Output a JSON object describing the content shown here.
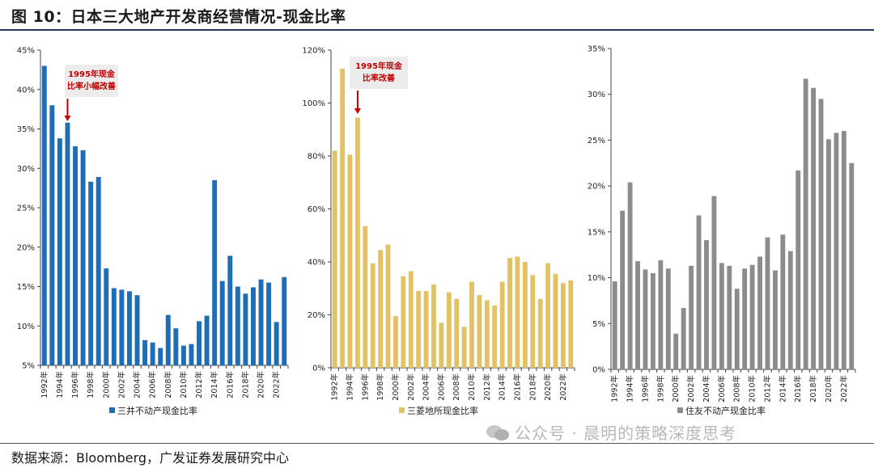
{
  "figure": {
    "title": "图 10：日本三大地产开发商经营情况-现金比率",
    "source": "数据来源：Bloomberg，广发证券发展研究中心",
    "watermark": "公众号 · 晨明的策略深度思考"
  },
  "colors": {
    "blue": "#1f6eb5",
    "yellow": "#e3c165",
    "gray": "#8c8c8c",
    "annotation": "#c00000"
  },
  "chart_data": [
    {
      "type": "bar",
      "legend": "三井不动产现金比率",
      "legend_position": "bottom",
      "grid": false,
      "categories": [
        "1992年",
        "1993年",
        "1994年",
        "1995年",
        "1996年",
        "1997年",
        "1998年",
        "1999年",
        "2000年",
        "2001年",
        "2002年",
        "2003年",
        "2004年",
        "2005年",
        "2006年",
        "2007年",
        "2008年",
        "2009年",
        "2010年",
        "2011年",
        "2012年",
        "2013年",
        "2014年",
        "2015年",
        "2016年",
        "2017年",
        "2018年",
        "2019年",
        "2020年",
        "2021年",
        "2022年",
        "2023年"
      ],
      "x_tick_labels": [
        "1992年",
        "1994年",
        "1996年",
        "1998年",
        "2000年",
        "2002年",
        "2004年",
        "2006年",
        "2008年",
        "2010年",
        "2012年",
        "2014年",
        "2016年",
        "2018年",
        "2020年",
        "2022年"
      ],
      "values": [
        43,
        38,
        33.8,
        35.8,
        32.8,
        32.3,
        28.3,
        28.9,
        17.3,
        14.8,
        14.6,
        14.4,
        13.9,
        8.2,
        7.9,
        7.2,
        11.4,
        9.7,
        7.5,
        7.7,
        10.6,
        11.3,
        28.5,
        15.7,
        18.9,
        15.0,
        14.1,
        14.9,
        15.9,
        15.5,
        10.5,
        16.2
      ],
      "ylim": [
        5,
        45
      ],
      "y_ticks": [
        "5%",
        "10%",
        "15%",
        "20%",
        "25%",
        "30%",
        "35%",
        "40%",
        "45%"
      ],
      "annotation": {
        "text_line1": "1995年现金",
        "text_line2": "比率小幅改善",
        "category": "1995年"
      }
    },
    {
      "type": "bar",
      "legend": "三菱地所现金比率",
      "legend_position": "bottom",
      "grid": false,
      "categories": [
        "1992年",
        "1993年",
        "1994年",
        "1995年",
        "1996年",
        "1997年",
        "1998年",
        "1999年",
        "2000年",
        "2001年",
        "2002年",
        "2003年",
        "2004年",
        "2005年",
        "2006年",
        "2007年",
        "2008年",
        "2009年",
        "2010年",
        "2011年",
        "2012年",
        "2013年",
        "2014年",
        "2015年",
        "2016年",
        "2017年",
        "2018年",
        "2019年",
        "2020年",
        "2021年",
        "2022年",
        "2023年"
      ],
      "x_tick_labels": [
        "1992年",
        "1994年",
        "1996年",
        "1998年",
        "2000年",
        "2002年",
        "2004年",
        "2006年",
        "2008年",
        "2010年",
        "2012年",
        "2014年",
        "2016年",
        "2018年",
        "2020年",
        "2022年"
      ],
      "values": [
        82,
        113,
        80.5,
        94.5,
        53.5,
        39.5,
        44.5,
        46.5,
        19.5,
        34.5,
        36.5,
        29,
        29,
        31.5,
        17,
        28.5,
        26,
        15.5,
        32.5,
        27.5,
        25.5,
        23.5,
        32.5,
        41.5,
        42,
        40,
        35,
        26,
        39.5,
        35.5,
        32,
        33
      ],
      "ylim": [
        0,
        120
      ],
      "y_ticks": [
        "0%",
        "20%",
        "40%",
        "60%",
        "80%",
        "100%",
        "120%"
      ],
      "annotation": {
        "text_line1": "1995年现金",
        "text_line2": "比率改善",
        "category": "1995年"
      }
    },
    {
      "type": "bar",
      "legend": "住友不动产现金比率",
      "legend_position": "bottom",
      "grid": false,
      "categories": [
        "1992年",
        "1993年",
        "1994年",
        "1995年",
        "1996年",
        "1997年",
        "1998年",
        "1999年",
        "2000年",
        "2001年",
        "2002年",
        "2003年",
        "2004年",
        "2005年",
        "2006年",
        "2007年",
        "2008年",
        "2009年",
        "2010年",
        "2011年",
        "2012年",
        "2013年",
        "2014年",
        "2015年",
        "2016年",
        "2017年",
        "2018年",
        "2019年",
        "2020年",
        "2021年",
        "2022年",
        "2023年"
      ],
      "x_tick_labels": [
        "1992年",
        "1994年",
        "1996年",
        "1998年",
        "2000年",
        "2002年",
        "2004年",
        "2006年",
        "2008年",
        "2010年",
        "2012年",
        "2014年",
        "2016年",
        "2018年",
        "2020年",
        "2022年"
      ],
      "values": [
        9.6,
        17.3,
        20.4,
        11.8,
        10.9,
        10.5,
        11.9,
        11.0,
        3.9,
        6.7,
        11.3,
        16.8,
        14.1,
        18.9,
        11.6,
        11.3,
        8.8,
        11.0,
        11.4,
        12.3,
        14.4,
        10.8,
        14.7,
        12.9,
        21.7,
        31.7,
        30.7,
        29.5,
        25.1,
        25.8,
        26.0,
        22.5
      ],
      "ylim": [
        0,
        35
      ],
      "y_ticks": [
        "0%",
        "5%",
        "10%",
        "15%",
        "20%",
        "25%",
        "30%",
        "35%"
      ]
    }
  ]
}
